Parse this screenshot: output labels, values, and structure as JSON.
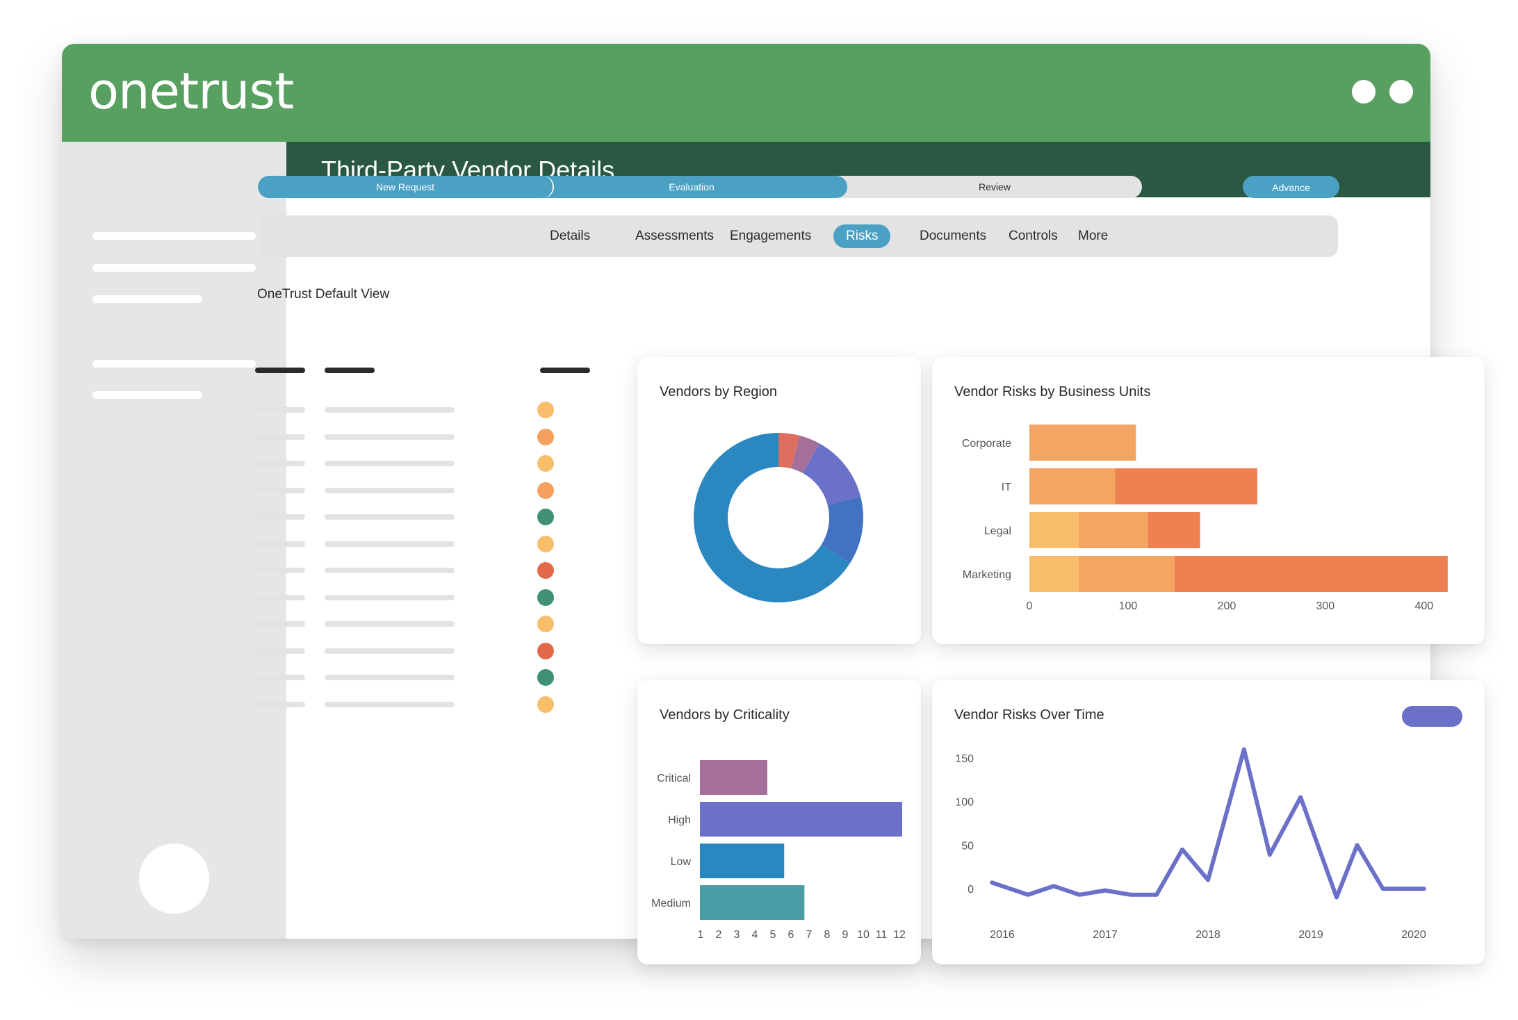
{
  "app": {
    "brand": "onetrust"
  },
  "page": {
    "title": "Third-Party Vendor Details"
  },
  "progress": {
    "steps": [
      {
        "label": "New Request",
        "state": "complete"
      },
      {
        "label": "Evaluation",
        "state": "current"
      },
      {
        "label": "Review",
        "state": "pending"
      }
    ],
    "advance_label": "Advance"
  },
  "tabs": [
    {
      "label": "Details",
      "active": false
    },
    {
      "label": "Assessments",
      "active": false
    },
    {
      "label": "Engagements",
      "active": false
    },
    {
      "label": "Risks",
      "active": true
    },
    {
      "label": "Documents",
      "active": false
    },
    {
      "label": "Controls",
      "active": false
    },
    {
      "label": "More",
      "active": false
    }
  ],
  "view": {
    "label": "OneTrust Default View"
  },
  "table": {
    "row_status_colors": [
      "#f9be6c",
      "#f4a05e",
      "#f9be6c",
      "#f4a05e",
      "#3f9074",
      "#f9be6c",
      "#e3694b",
      "#3f9074",
      "#f9be6c",
      "#e3694b",
      "#3f9074",
      "#f9be6c"
    ]
  },
  "colors": {
    "brand_green": "#58a05f",
    "title_green": "#2a5842",
    "accent_blue": "#4aa1c4"
  },
  "chart_data": [
    {
      "id": "region",
      "type": "pie",
      "title": "Vendors by Region",
      "values": [
        4,
        4,
        13,
        13,
        66
      ],
      "colors": [
        "#de6e5d",
        "#a4709a",
        "#6b70c8",
        "#4372c2",
        "#2a87bf"
      ]
    },
    {
      "id": "business_units",
      "type": "bar",
      "title": "Vendor Risks by Business Units",
      "categories": [
        "Corporate",
        "IT",
        "Legal",
        "Marketing"
      ],
      "series": [
        {
          "values": [
            0,
            0,
            50,
            50
          ],
          "color": "#f9be6c"
        },
        {
          "values": [
            108,
            87,
            70,
            97
          ],
          "color": "#f4a562"
        },
        {
          "values": [
            0,
            144,
            53,
            277
          ],
          "color": "#ef8051"
        }
      ],
      "x_ticks": [
        "0",
        "100",
        "200",
        "300",
        "400"
      ],
      "xlim": [
        0,
        410
      ]
    },
    {
      "id": "criticality",
      "type": "bar",
      "title": "Vendors by Criticality",
      "categories": [
        "Critical",
        "High",
        "Low",
        "Medium"
      ],
      "values": [
        4,
        12,
        5,
        6.2
      ],
      "colors": [
        "#a4709a",
        "#6b70c8",
        "#2a87bf",
        "#4a9ca6"
      ],
      "x_ticks": [
        "1",
        "2",
        "3",
        "4",
        "5",
        "6",
        "7",
        "8",
        "9",
        "10",
        "11",
        "12"
      ],
      "xlim": [
        0,
        12
      ]
    },
    {
      "id": "over_time",
      "type": "line",
      "title": "Vendor Risks Over Time",
      "x_ticks": [
        "2016",
        "2017",
        "2018",
        "2019",
        "2020"
      ],
      "y_ticks": [
        "150",
        "100",
        "50",
        "0"
      ],
      "ylim": [
        0,
        150
      ],
      "x": [
        2015.9,
        2016.25,
        2016.5,
        2016.75,
        2017.0,
        2017.25,
        2017.5,
        2017.75,
        2018.0,
        2018.35,
        2018.6,
        2018.9,
        2019.25,
        2019.45,
        2019.7,
        2019.85,
        2020.1
      ],
      "y": [
        7,
        -7,
        3,
        -7,
        -2,
        -7,
        -7,
        45,
        10,
        160,
        39,
        105,
        -10,
        50,
        0,
        0,
        0
      ],
      "color": "#6b70c8"
    }
  ]
}
